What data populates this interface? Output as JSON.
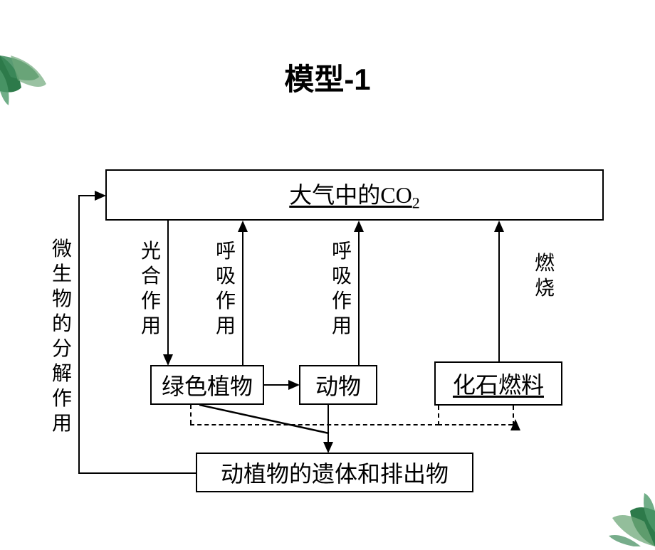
{
  "title": "模型-1",
  "nodes": {
    "co2": "大气中的CO",
    "co2_sub": "2",
    "plant": "绿色植物",
    "animal": "动物",
    "fuel": "化石燃料",
    "remains": "动植物的遗体和排出物"
  },
  "labels": {
    "photosynthesis": "光合作用",
    "respiration1": "呼吸作用",
    "respiration2": "呼吸作用",
    "combustion": "燃烧",
    "decomposition": "微生物的分解作用"
  },
  "styling": {
    "background_color": "#ffffff",
    "border_color": "#000000",
    "border_width": 2.5,
    "title_fontsize": 42,
    "box_fontsize": 32,
    "label_fontsize": 28,
    "font_family": "SimSun",
    "title_font_family": "SimHei",
    "arrow_head_size": 16,
    "underlined_nodes": [
      "co2",
      "fuel"
    ],
    "diagram_type": "flowchart",
    "decoration_color_1": "#2d7a4a",
    "decoration_color_2": "#6fa87a"
  }
}
